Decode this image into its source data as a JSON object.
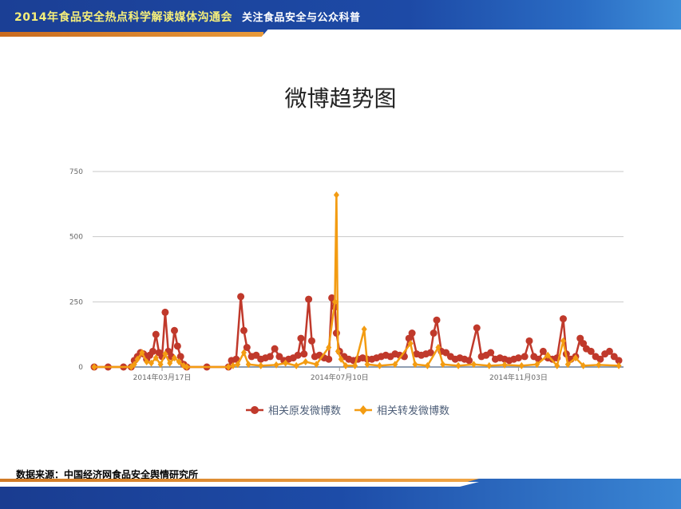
{
  "header": {
    "title": "2014年食品安全热点科学解读媒体沟通会",
    "subtitle": "关注食品安全与公众科普"
  },
  "source_text": "数据来源：中国经济网食品安全舆情研究所",
  "chart_data": {
    "type": "line",
    "title": "微博趋势图",
    "xlabel": "",
    "ylabel": "",
    "ylim": [
      0,
      750
    ],
    "xlim": [
      "2014-02-01",
      "2015-01-08"
    ],
    "yticks": [
      0,
      250,
      500,
      750
    ],
    "xticks": [
      {
        "date": "2014-03-17",
        "label": "2014年03月17日"
      },
      {
        "date": "2014-07-10",
        "label": "2014年07月10日"
      },
      {
        "date": "2014-11-03",
        "label": "2014年11月03日"
      }
    ],
    "grid": "horizontal",
    "legend_position": "bottom",
    "series": [
      {
        "name": "相关原发微博数",
        "color": "#c0392b",
        "marker": "circle",
        "points": [
          [
            "2014-02-01",
            0
          ],
          [
            "2014-02-10",
            0
          ],
          [
            "2014-02-20",
            0
          ],
          [
            "2014-02-25",
            0
          ],
          [
            "2014-02-27",
            25
          ],
          [
            "2014-03-01",
            40
          ],
          [
            "2014-03-03",
            55
          ],
          [
            "2014-03-05",
            50
          ],
          [
            "2014-03-07",
            30
          ],
          [
            "2014-03-09",
            45
          ],
          [
            "2014-03-11",
            60
          ],
          [
            "2014-03-13",
            125
          ],
          [
            "2014-03-15",
            55
          ],
          [
            "2014-03-17",
            40
          ],
          [
            "2014-03-19",
            210
          ],
          [
            "2014-03-21",
            60
          ],
          [
            "2014-03-23",
            40
          ],
          [
            "2014-03-25",
            140
          ],
          [
            "2014-03-27",
            80
          ],
          [
            "2014-03-29",
            40
          ],
          [
            "2014-03-31",
            10
          ],
          [
            "2014-04-02",
            0
          ],
          [
            "2014-04-15",
            0
          ],
          [
            "2014-04-29",
            0
          ],
          [
            "2014-05-01",
            25
          ],
          [
            "2014-05-04",
            30
          ],
          [
            "2014-05-07",
            270
          ],
          [
            "2014-05-09",
            140
          ],
          [
            "2014-05-11",
            75
          ],
          [
            "2014-05-14",
            40
          ],
          [
            "2014-05-17",
            45
          ],
          [
            "2014-05-20",
            30
          ],
          [
            "2014-05-23",
            35
          ],
          [
            "2014-05-26",
            40
          ],
          [
            "2014-05-29",
            70
          ],
          [
            "2014-06-01",
            40
          ],
          [
            "2014-06-04",
            25
          ],
          [
            "2014-06-07",
            30
          ],
          [
            "2014-06-10",
            35
          ],
          [
            "2014-06-13",
            45
          ],
          [
            "2014-06-15",
            110
          ],
          [
            "2014-06-17",
            50
          ],
          [
            "2014-06-20",
            260
          ],
          [
            "2014-06-22",
            100
          ],
          [
            "2014-06-24",
            40
          ],
          [
            "2014-06-27",
            45
          ],
          [
            "2014-06-30",
            35
          ],
          [
            "2014-07-03",
            30
          ],
          [
            "2014-07-05",
            265
          ],
          [
            "2014-07-07",
            230
          ],
          [
            "2014-07-08",
            130
          ],
          [
            "2014-07-10",
            60
          ],
          [
            "2014-07-13",
            40
          ],
          [
            "2014-07-16",
            30
          ],
          [
            "2014-07-19",
            25
          ],
          [
            "2014-07-22",
            30
          ],
          [
            "2014-07-25",
            35
          ],
          [
            "2014-07-28",
            30
          ],
          [
            "2014-07-31",
            30
          ],
          [
            "2014-08-03",
            35
          ],
          [
            "2014-08-06",
            40
          ],
          [
            "2014-08-09",
            45
          ],
          [
            "2014-08-12",
            40
          ],
          [
            "2014-08-15",
            50
          ],
          [
            "2014-08-18",
            45
          ],
          [
            "2014-08-21",
            40
          ],
          [
            "2014-08-24",
            110
          ],
          [
            "2014-08-26",
            130
          ],
          [
            "2014-08-29",
            50
          ],
          [
            "2014-09-01",
            45
          ],
          [
            "2014-09-04",
            50
          ],
          [
            "2014-09-07",
            55
          ],
          [
            "2014-09-09",
            130
          ],
          [
            "2014-09-11",
            180
          ],
          [
            "2014-09-14",
            60
          ],
          [
            "2014-09-17",
            55
          ],
          [
            "2014-09-20",
            40
          ],
          [
            "2014-09-23",
            30
          ],
          [
            "2014-09-26",
            35
          ],
          [
            "2014-09-29",
            30
          ],
          [
            "2014-10-02",
            25
          ],
          [
            "2014-10-07",
            150
          ],
          [
            "2014-10-10",
            40
          ],
          [
            "2014-10-13",
            45
          ],
          [
            "2014-10-16",
            55
          ],
          [
            "2014-10-19",
            30
          ],
          [
            "2014-10-22",
            35
          ],
          [
            "2014-10-25",
            30
          ],
          [
            "2014-10-28",
            25
          ],
          [
            "2014-10-31",
            30
          ],
          [
            "2014-11-03",
            35
          ],
          [
            "2014-11-07",
            40
          ],
          [
            "2014-11-10",
            100
          ],
          [
            "2014-11-13",
            40
          ],
          [
            "2014-11-16",
            30
          ],
          [
            "2014-11-19",
            60
          ],
          [
            "2014-11-22",
            35
          ],
          [
            "2014-11-25",
            30
          ],
          [
            "2014-11-28",
            35
          ],
          [
            "2014-12-02",
            185
          ],
          [
            "2014-12-04",
            50
          ],
          [
            "2014-12-07",
            30
          ],
          [
            "2014-12-10",
            40
          ],
          [
            "2014-12-13",
            110
          ],
          [
            "2014-12-15",
            90
          ],
          [
            "2014-12-17",
            70
          ],
          [
            "2014-12-20",
            60
          ],
          [
            "2014-12-23",
            40
          ],
          [
            "2014-12-26",
            30
          ],
          [
            "2014-12-29",
            50
          ],
          [
            "2015-01-01",
            60
          ],
          [
            "2015-01-04",
            40
          ],
          [
            "2015-01-07",
            25
          ]
        ]
      },
      {
        "name": "相关转发微博数",
        "color": "#f39c12",
        "marker": "diamond",
        "points": [
          [
            "2014-02-01",
            0
          ],
          [
            "2014-02-25",
            0
          ],
          [
            "2014-02-27",
            10
          ],
          [
            "2014-03-01",
            30
          ],
          [
            "2014-03-04",
            55
          ],
          [
            "2014-03-07",
            20
          ],
          [
            "2014-03-10",
            15
          ],
          [
            "2014-03-13",
            35
          ],
          [
            "2014-03-16",
            10
          ],
          [
            "2014-03-19",
            50
          ],
          [
            "2014-03-22",
            15
          ],
          [
            "2014-03-25",
            35
          ],
          [
            "2014-03-28",
            20
          ],
          [
            "2014-03-31",
            5
          ],
          [
            "2014-04-02",
            0
          ],
          [
            "2014-04-29",
            0
          ],
          [
            "2014-05-02",
            5
          ],
          [
            "2014-05-05",
            10
          ],
          [
            "2014-05-09",
            55
          ],
          [
            "2014-05-12",
            10
          ],
          [
            "2014-05-20",
            5
          ],
          [
            "2014-05-30",
            8
          ],
          [
            "2014-06-05",
            15
          ],
          [
            "2014-06-12",
            5
          ],
          [
            "2014-06-18",
            20
          ],
          [
            "2014-06-25",
            10
          ],
          [
            "2014-07-03",
            75
          ],
          [
            "2014-07-07",
            250
          ],
          [
            "2014-07-08",
            660
          ],
          [
            "2014-07-09",
            60
          ],
          [
            "2014-07-11",
            30
          ],
          [
            "2014-07-14",
            5
          ],
          [
            "2014-07-20",
            5
          ],
          [
            "2014-07-26",
            145
          ],
          [
            "2014-07-28",
            10
          ],
          [
            "2014-08-05",
            5
          ],
          [
            "2014-08-15",
            10
          ],
          [
            "2014-08-25",
            90
          ],
          [
            "2014-08-28",
            10
          ],
          [
            "2014-09-05",
            5
          ],
          [
            "2014-09-12",
            75
          ],
          [
            "2014-09-15",
            10
          ],
          [
            "2014-09-25",
            5
          ],
          [
            "2014-10-05",
            10
          ],
          [
            "2014-10-15",
            5
          ],
          [
            "2014-10-25",
            8
          ],
          [
            "2014-11-05",
            5
          ],
          [
            "2014-11-15",
            10
          ],
          [
            "2014-11-22",
            45
          ],
          [
            "2014-11-28",
            5
          ],
          [
            "2014-12-02",
            100
          ],
          [
            "2014-12-05",
            10
          ],
          [
            "2014-12-10",
            35
          ],
          [
            "2014-12-15",
            5
          ],
          [
            "2014-12-25",
            8
          ],
          [
            "2015-01-07",
            5
          ]
        ]
      }
    ]
  }
}
